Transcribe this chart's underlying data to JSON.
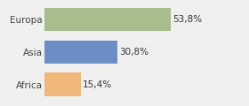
{
  "categories": [
    "Africa",
    "Asia",
    "Europa"
  ],
  "values": [
    15.4,
    30.8,
    53.8
  ],
  "bar_colors": [
    "#f0b87a",
    "#6d8ec4",
    "#a8bc8c"
  ],
  "labels": [
    "15,4%",
    "30,8%",
    "53,8%"
  ],
  "xlim": [
    0,
    85
  ],
  "background_color": "#f0f0f0",
  "bar_height": 0.72,
  "label_fontsize": 7.5,
  "tick_fontsize": 7.5
}
